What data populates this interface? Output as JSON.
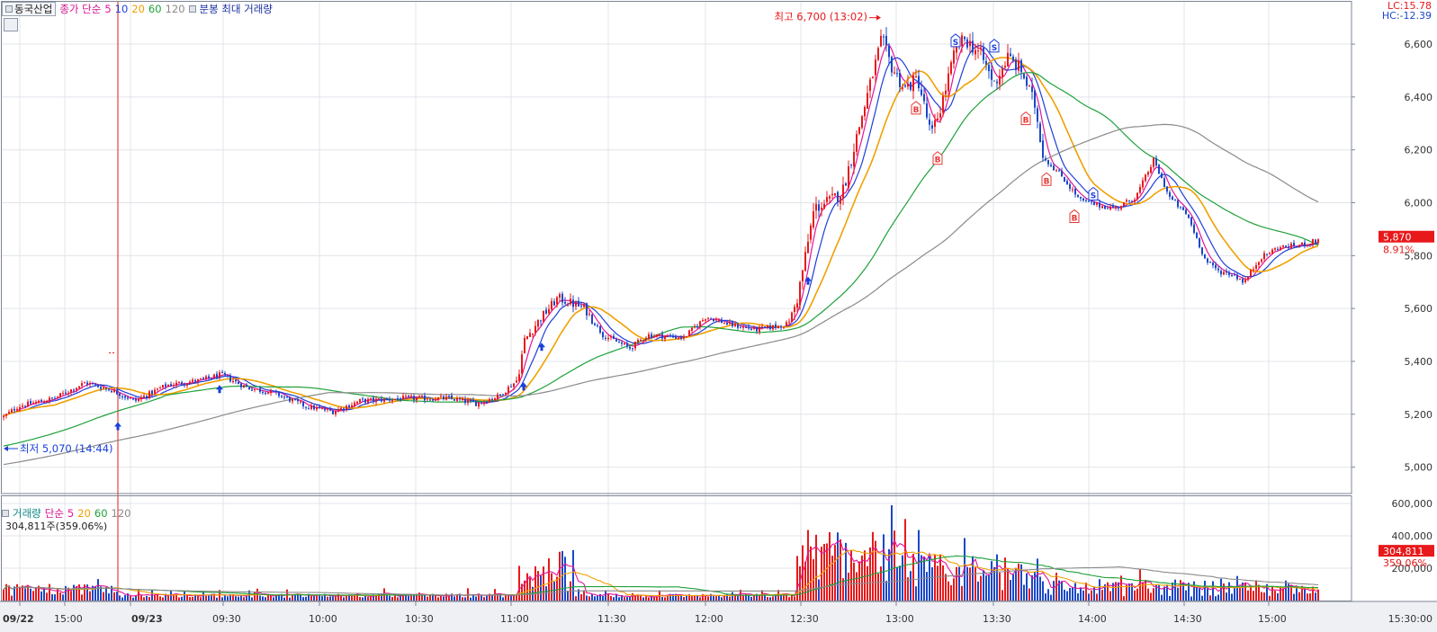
{
  "header": {
    "stock_name": "동국산업",
    "price_label": "종가 단순",
    "ma_periods": [
      "5",
      "10",
      "20",
      "60",
      "120"
    ],
    "ma_colors": [
      "#e2159b",
      "#1f3fd8",
      "#f0a000",
      "#1ea13a",
      "#8a8a8a"
    ],
    "candle_label": "분봉 최대 거래량"
  },
  "lc_label": "LC:15.78",
  "hc_label": "HC:-12.39",
  "price_axis": {
    "ticks": [
      "6,600",
      "6,400",
      "6,200",
      "6,000",
      "5,800",
      "5,600",
      "5,400",
      "5,200",
      "5,000"
    ],
    "current_price": "5,870",
    "current_change": "8.91%"
  },
  "annotations": {
    "high": "최고 6,700 (13:02)",
    "low": "최저 5,070 (14:44)"
  },
  "volume": {
    "label": "거래량",
    "ma_label": "단순",
    "ma_periods": [
      "5",
      "20",
      "60",
      "120"
    ],
    "current_text": "304,811주(359.06%)",
    "axis_ticks": [
      "600,000",
      "400,000",
      "200,000"
    ],
    "current_value": "304,811",
    "current_pct": "359.06%"
  },
  "time_axis": {
    "labels": [
      "09/22",
      "15:00",
      "09/23",
      "09:30",
      "10:00",
      "10:30",
      "11:00",
      "11:30",
      "12:00",
      "12:30",
      "13:00",
      "13:30",
      "14:00",
      "14:30",
      "15:00"
    ],
    "end_label": "15:30:00"
  },
  "signals": [
    {
      "label": "B",
      "color": "#e53935"
    },
    {
      "label": "S",
      "color": "#1f3fd8"
    }
  ],
  "colors": {
    "up": "#e8191b",
    "down": "#1a48c8",
    "highlight": "#e8191b",
    "blue_text": "#1a3fd8"
  },
  "chart_data": {
    "type": "candlestick",
    "price_range": [
      4900,
      6760
    ],
    "volume_range": [
      0,
      650000
    ],
    "high": 6700,
    "low": 5070,
    "last": 5870
  }
}
